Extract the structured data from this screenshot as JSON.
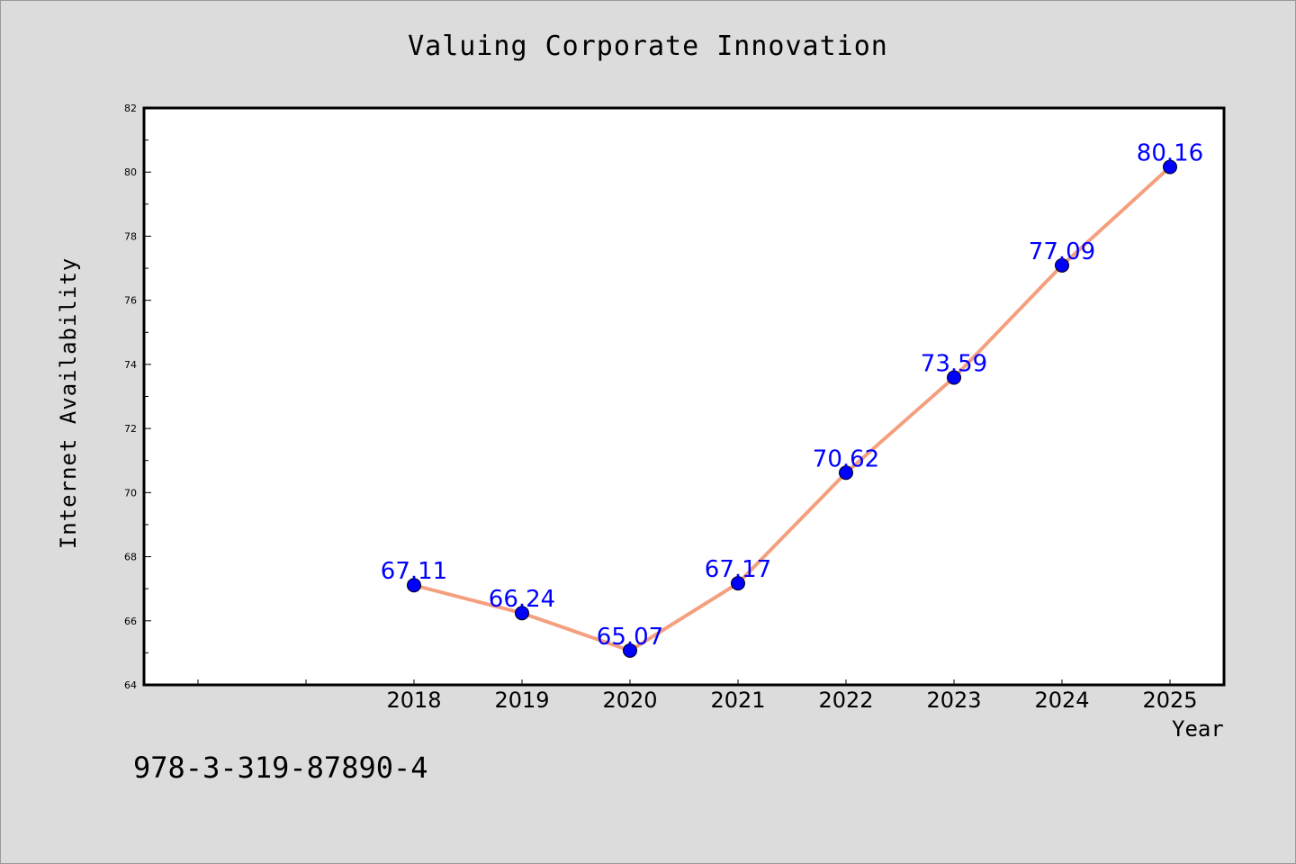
{
  "chart_data": {
    "type": "line",
    "title": "Valuing Corporate Innovation",
    "xlabel": "Year",
    "ylabel": "Internet Availability",
    "x": [
      "2018",
      "2019",
      "2020",
      "2021",
      "2022",
      "2023",
      "2024",
      "2025"
    ],
    "series": [
      {
        "values": [
          67.11,
          66.24,
          65.07,
          67.17,
          70.62,
          73.59,
          77.09,
          80.16
        ],
        "labels": [
          "67.11",
          "66.24",
          "65.07",
          "67.17",
          "70.62",
          "73.59",
          "77.09",
          "80.16"
        ]
      }
    ],
    "ylim": [
      64,
      82
    ],
    "yticks": [
      "64",
      "66",
      "68",
      "70",
      "72",
      "74",
      "76",
      "78",
      "80",
      "82"
    ],
    "x_index_range": [
      -2.5,
      7.5
    ],
    "grid": false,
    "colors": {
      "line": "#f4a07f",
      "marker": "#0000ff",
      "data_label": "#0000ff",
      "background": "#dcdcdc",
      "plot_area": "#ffffff"
    }
  },
  "footer": {
    "identifier": "978-3-319-87890-4"
  }
}
